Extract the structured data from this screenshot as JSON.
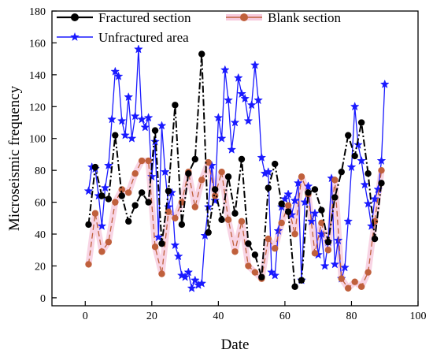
{
  "chart_data": {
    "type": "line",
    "xlabel": "Date",
    "ylabel": "Microseismic frequency",
    "xlim": [
      -10,
      100
    ],
    "ylim": [
      -5,
      180
    ],
    "xticks": [
      0,
      20,
      40,
      60,
      80,
      100
    ],
    "yticks": [
      0,
      20,
      40,
      60,
      80,
      100,
      120,
      140,
      160,
      180
    ],
    "legend_position": "top",
    "series": [
      {
        "name": "Fractured section",
        "color": "#000000",
        "marker": "circle",
        "line_style": "dashdot",
        "x": [
          1,
          3,
          5,
          7,
          9,
          11,
          13,
          15,
          17,
          19,
          21,
          23,
          25,
          27,
          29,
          31,
          33,
          35,
          37,
          39,
          41,
          43,
          45,
          47,
          49,
          51,
          53,
          55,
          57,
          59,
          61,
          63,
          65,
          67,
          69,
          71,
          73,
          75,
          77,
          79,
          81,
          83,
          85,
          87,
          89
        ],
        "y": [
          46,
          82,
          64,
          62,
          102,
          64,
          48,
          58,
          66,
          60,
          105,
          34,
          67,
          121,
          46,
          78,
          87,
          153,
          41,
          68,
          49,
          76,
          53,
          87,
          34,
          27,
          13,
          69,
          84,
          59,
          54,
          7,
          11,
          66,
          68,
          55,
          35,
          63,
          79,
          102,
          89,
          110,
          78,
          37,
          72
        ]
      },
      {
        "name": "Blank section",
        "color": "#c0603c",
        "marker": "circle",
        "line_style": "dashed",
        "x": [
          1,
          3,
          5,
          7,
          9,
          11,
          13,
          15,
          17,
          19,
          21,
          23,
          25,
          27,
          29,
          31,
          33,
          35,
          37,
          39,
          41,
          43,
          45,
          47,
          49,
          51,
          53,
          55,
          57,
          59,
          61,
          63,
          65,
          67,
          69,
          71,
          73,
          75,
          77,
          79,
          81,
          83,
          85,
          87,
          89
        ],
        "y": [
          21,
          53,
          29,
          35,
          60,
          68,
          66,
          78,
          86,
          86,
          32,
          15,
          54,
          50,
          60,
          79,
          57,
          74,
          85,
          64,
          79,
          49,
          29,
          48,
          20,
          16,
          12,
          37,
          31,
          47,
          58,
          40,
          76,
          65,
          28,
          47,
          30,
          74,
          12,
          6,
          10,
          7,
          16,
          48,
          80
        ]
      },
      {
        "name": "Unfractured area",
        "color": "#1a1aff",
        "marker": "star",
        "line_style": "solid",
        "x": [
          1,
          2,
          3,
          4,
          5,
          6,
          7,
          8,
          9,
          10,
          11,
          12,
          13,
          14,
          15,
          16,
          17,
          18,
          19,
          20,
          21,
          22,
          23,
          24,
          25,
          26,
          27,
          28,
          29,
          30,
          31,
          32,
          33,
          34,
          35,
          36,
          37,
          38,
          39,
          40,
          41,
          42,
          43,
          44,
          45,
          46,
          47,
          48,
          49,
          50,
          51,
          52,
          53,
          54,
          55,
          56,
          57,
          58,
          59,
          60,
          61,
          62,
          63,
          64,
          65,
          66,
          67,
          68,
          69,
          70,
          71,
          72,
          73,
          74,
          75,
          76,
          77,
          78,
          79,
          80,
          81,
          82,
          83,
          84,
          85,
          86,
          87,
          88,
          89,
          90
        ],
        "y": [
          67,
          82,
          81,
          64,
          45,
          69,
          83,
          112,
          142,
          139,
          111,
          102,
          126,
          100,
          114,
          156,
          112,
          107,
          113,
          76,
          98,
          38,
          108,
          79,
          57,
          66,
          33,
          26,
          14,
          13,
          16,
          6,
          11,
          8,
          9,
          39,
          57,
          83,
          61,
          113,
          100,
          143,
          124,
          93,
          110,
          138,
          128,
          125,
          111,
          121,
          146,
          124,
          88,
          78,
          79,
          16,
          14,
          42,
          57,
          62,
          65,
          52,
          61,
          72,
          11,
          60,
          70,
          48,
          53,
          27,
          40,
          20,
          35,
          75,
          21,
          36,
          12,
          19,
          48,
          82,
          120,
          96,
          86,
          71,
          59,
          45,
          62,
          68,
          86,
          134
        ]
      }
    ]
  }
}
